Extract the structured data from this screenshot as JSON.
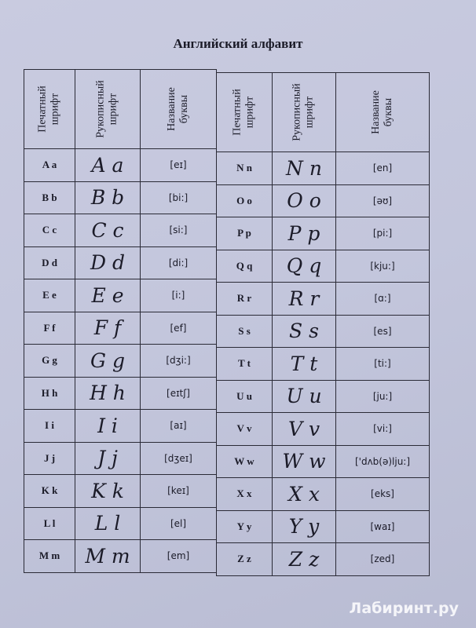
{
  "title": "Английский алфавит",
  "headers": {
    "print": "Печатный\nшрифт",
    "hand": "Рукописный\nшрифт",
    "name": "Название\nбуквы"
  },
  "left_rows": [
    {
      "print": "A a",
      "hand": "A a",
      "name": "[eɪ]"
    },
    {
      "print": "B b",
      "hand": "B b",
      "name": "[bi:]"
    },
    {
      "print": "C c",
      "hand": "C c",
      "name": "[si:]"
    },
    {
      "print": "D d",
      "hand": "D d",
      "name": "[di:]"
    },
    {
      "print": "E e",
      "hand": "E e",
      "name": "[i:]"
    },
    {
      "print": "F f",
      "hand": "F f",
      "name": "[ef]"
    },
    {
      "print": "G g",
      "hand": "G g",
      "name": "[dʒi:]"
    },
    {
      "print": "H h",
      "hand": "H h",
      "name": "[eɪtʃ]"
    },
    {
      "print": "I i",
      "hand": "I i",
      "name": "[aɪ]"
    },
    {
      "print": "J j",
      "hand": "J j",
      "name": "[dʒeɪ]"
    },
    {
      "print": "K k",
      "hand": "K k",
      "name": "[keɪ]"
    },
    {
      "print": "L l",
      "hand": "L l",
      "name": "[el]"
    },
    {
      "print": "M m",
      "hand": "M m",
      "name": "[em]"
    }
  ],
  "right_rows": [
    {
      "print": "N n",
      "hand": "N n",
      "name": "[en]"
    },
    {
      "print": "O o",
      "hand": "O o",
      "name": "[əʊ]"
    },
    {
      "print": "P p",
      "hand": "P p",
      "name": "[pi:]"
    },
    {
      "print": "Q q",
      "hand": "Q q",
      "name": "[kju:]"
    },
    {
      "print": "R r",
      "hand": "R r",
      "name": "[ɑ:]"
    },
    {
      "print": "S s",
      "hand": "S s",
      "name": "[es]"
    },
    {
      "print": "T t",
      "hand": "T t",
      "name": "[ti:]"
    },
    {
      "print": "U u",
      "hand": "U u",
      "name": "[ju:]"
    },
    {
      "print": "V v",
      "hand": "V v",
      "name": "[vi:]"
    },
    {
      "print": "W w",
      "hand": "W w",
      "name": "['dʌb(ə)lju:]"
    },
    {
      "print": "X x",
      "hand": "X x",
      "name": "[eks]"
    },
    {
      "print": "Y y",
      "hand": "Y y",
      "name": "[waɪ]"
    },
    {
      "print": "Z z",
      "hand": "Z z",
      "name": "[zed]"
    }
  ],
  "watermark": "Лабиринт.ру"
}
